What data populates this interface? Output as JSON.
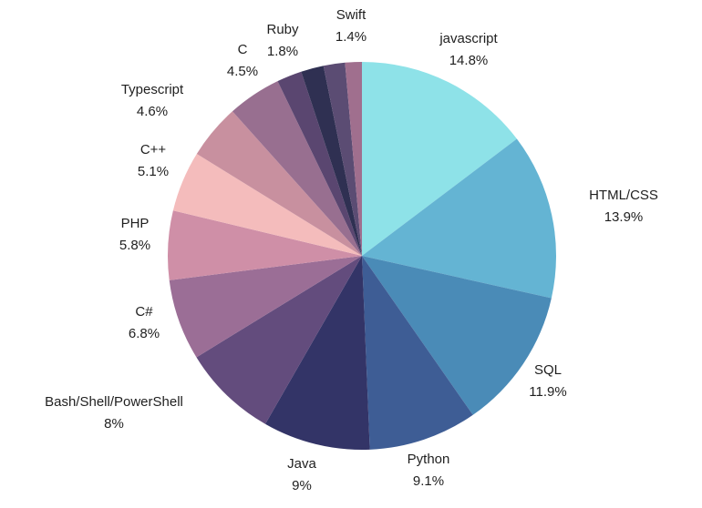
{
  "chart_data": {
    "type": "pie",
    "title": "",
    "slices": [
      {
        "label": "javascript",
        "value": 14.8,
        "display": "14.8%",
        "color": "#8ee2e8"
      },
      {
        "label": "HTML/CSS",
        "value": 13.9,
        "display": "13.9%",
        "color": "#64b4d3"
      },
      {
        "label": "SQL",
        "value": 11.9,
        "display": "11.9%",
        "color": "#4a8bb7"
      },
      {
        "label": "Python",
        "value": 9.1,
        "display": "9.1%",
        "color": "#3e5d95"
      },
      {
        "label": "Java",
        "value": 9,
        "display": "9%",
        "color": "#333467"
      },
      {
        "label": "Bash/Shell/PowerShell",
        "value": 8,
        "display": "8%",
        "color": "#634c7d"
      },
      {
        "label": "C#",
        "value": 6.8,
        "display": "6.8%",
        "color": "#9b6e96"
      },
      {
        "label": "PHP",
        "value": 5.8,
        "display": "5.8%",
        "color": "#cf8fa7"
      },
      {
        "label": "C++",
        "value": 5.1,
        "display": "5.1%",
        "color": "#f4bcbc"
      },
      {
        "label": "Typescript",
        "value": 4.6,
        "display": "4.6%",
        "color": "#c8909f"
      },
      {
        "label": "C",
        "value": 4.5,
        "display": "4.5%",
        "color": "#986f90"
      },
      {
        "label": "",
        "value": 2.1,
        "display": "",
        "color": "#5a4670"
      },
      {
        "label": "",
        "value": 1.9,
        "display": "",
        "color": "#2f3052"
      },
      {
        "label": "Ruby",
        "value": 1.8,
        "display": "1.8%",
        "color": "#5b4c73"
      },
      {
        "label": "Swift",
        "value": 1.4,
        "display": "1.4%",
        "color": "#a06f8e"
      }
    ],
    "start_angle": "12 o'clock",
    "direction": "clockwise",
    "legend": "none"
  }
}
